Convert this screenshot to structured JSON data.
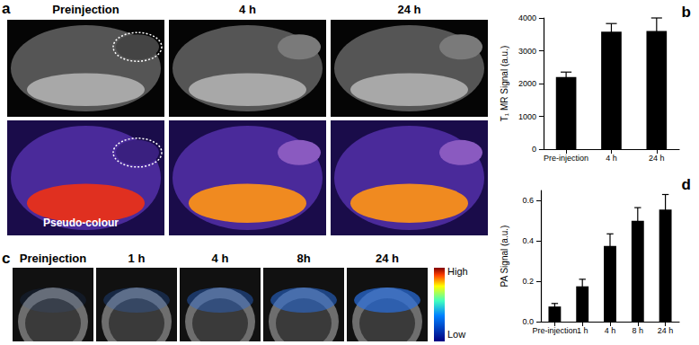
{
  "panels": [
    {
      "label": "a",
      "column_labels": [
        "Preinjection",
        "4 h",
        "24 h"
      ],
      "row_label": "Pseudo-colour"
    },
    {
      "label": "c",
      "column_labels": [
        "Preinjection",
        "1 h",
        "4 h",
        "8h",
        "24 h"
      ],
      "colorbar": {
        "high": "High",
        "low": "Low"
      }
    }
  ],
  "chart_data": [
    {
      "type": "bar",
      "title": "b",
      "categories": [
        "Pre-injection",
        "4 h",
        "24 h"
      ],
      "values": [
        2200,
        3580,
        3600
      ],
      "errors": [
        150,
        250,
        400
      ],
      "color": "#000000",
      "y_label": "T₁ MR Signal (a.u.)",
      "ylim": [
        0,
        4000
      ],
      "yticks": [
        0,
        1000,
        2000,
        3000,
        4000
      ],
      "grid": false
    },
    {
      "type": "bar",
      "title": "d",
      "categories": [
        "Pre-injection",
        "1 h",
        "4 h",
        "8 h",
        "24 h"
      ],
      "values": [
        0.075,
        0.175,
        0.375,
        0.5,
        0.555
      ],
      "errors": [
        0.015,
        0.035,
        0.06,
        0.065,
        0.075
      ],
      "color": "#000000",
      "y_label": "PA Signal (a.u.)",
      "ylim": [
        0,
        0.65
      ],
      "yticks": [
        {
          "value": 0,
          "label": "0.0"
        },
        0.2,
        0.4,
        0.6
      ],
      "grid": false
    }
  ]
}
